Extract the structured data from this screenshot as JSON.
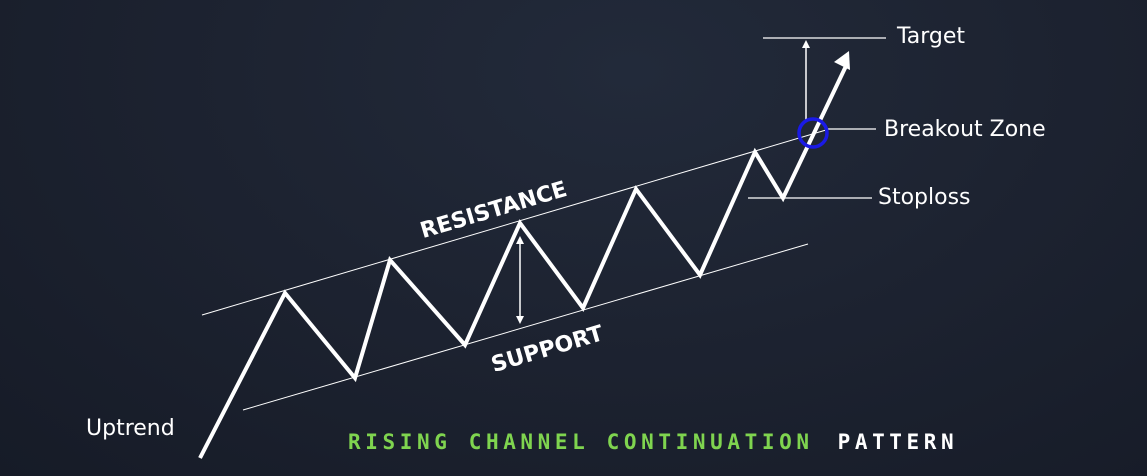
{
  "labels": {
    "target": "Target",
    "breakout_zone": "Breakout  Zone",
    "stoploss": "Stoploss",
    "uptrend": "Uptrend",
    "resistance": "RESISTANCE",
    "support": "SUPPORT"
  },
  "title": {
    "part1": "RISING CHANNEL CONTINUATION",
    "part2": "PATTERN"
  },
  "colors": {
    "background": "#1c2230",
    "line": "#ffffff",
    "breakout_circle": "#1a1ae6",
    "title_accent": "#7fd44f"
  }
}
